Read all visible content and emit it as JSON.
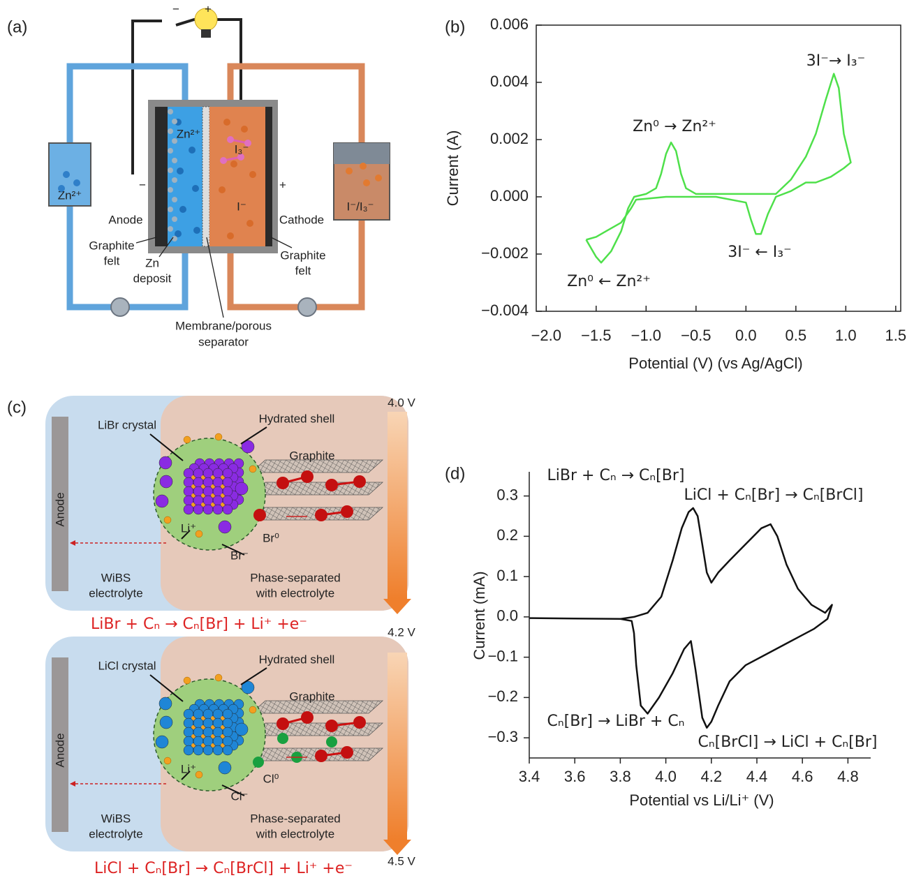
{
  "diagram_a": {
    "panel_label": "(a)",
    "circuit_signs": [
      "−",
      "+"
    ],
    "electrode_signs": [
      "−",
      "+"
    ],
    "anolyte_tank": "Zn²⁺",
    "catholyte_tank": "I⁻/I₃⁻",
    "cell_ions": [
      "Zn²⁺",
      "I₃⁻",
      "I⁻"
    ],
    "anode": "Anode",
    "cathode": "Cathode",
    "graphite_felt_left": [
      "Graphite",
      "felt"
    ],
    "zn_deposit": [
      "Zn",
      "deposit"
    ],
    "graphite_felt_right": [
      "Graphite",
      "felt"
    ],
    "separator": [
      "Membrane/porous",
      "separator"
    ]
  },
  "diagram_c": {
    "panel_label": "(c)",
    "voltages": [
      "4.0 V",
      "4.2 V",
      "4.5 V"
    ],
    "steps": [
      {
        "crystal": "LiBr crystal",
        "shell": "Hydrated shell",
        "graphite": "Graphite",
        "anode": "Anode",
        "cation": "Li⁺",
        "halogen": "Br⁰",
        "anion": "Br⁻",
        "electrolyte": [
          "WiBS",
          "electrolyte"
        ],
        "phase": [
          "Phase-separated",
          "with electrolyte"
        ],
        "equation": "LiBr + Cₙ → Cₙ[Br] + Li⁺ +e⁻"
      },
      {
        "crystal": "LiCl crystal",
        "shell": "Hydrated shell",
        "graphite": "Graphite",
        "anode": "Anode",
        "cation": "Li⁺",
        "halogen": "Cl⁰",
        "anion": "Cl⁻",
        "electrolyte": [
          "WiBS",
          "electrolyte"
        ],
        "phase": [
          "Phase-separated",
          "with electrolyte"
        ],
        "equation": "LiCl + Cₙ[Br] → Cₙ[BrCl] + Li⁺ +e⁻"
      }
    ]
  },
  "chart_data": [
    {
      "type": "line",
      "panel_label": "(b)",
      "x_label": "Potential (V) (vs Ag/AgCl)",
      "y_label": "Current (A)",
      "color": "#4ee04a",
      "x": [
        -1.6,
        -1.5,
        -1.45,
        -1.35,
        -1.25,
        -1.18,
        -1.12,
        -1.0,
        -0.9,
        -0.85,
        -0.8,
        -0.75,
        -0.7,
        -0.65,
        -0.6,
        -0.5,
        0.0,
        0.3,
        0.45,
        0.6,
        0.7,
        0.8,
        0.88,
        0.93,
        0.98,
        1.05,
        0.98,
        0.85,
        0.7,
        0.6,
        0.45,
        0.3,
        0.22,
        0.15,
        0.1,
        0.05,
        0.0,
        -0.3,
        -0.8,
        -1.1,
        -1.15,
        -1.25,
        -1.4,
        -1.5,
        -1.6
      ],
      "values": [
        -0.0015,
        -0.0021,
        -0.0023,
        -0.0019,
        -0.0012,
        -0.0004,
        0.0,
        0.0001,
        0.0003,
        0.0008,
        0.0015,
        0.0019,
        0.0016,
        0.0008,
        0.0003,
        0.0001,
        0.0001,
        0.0001,
        0.0006,
        0.0014,
        0.0022,
        0.0034,
        0.0043,
        0.0038,
        0.0022,
        0.0012,
        0.001,
        0.0007,
        0.0005,
        0.0005,
        0.0002,
        0.0,
        -0.0006,
        -0.0013,
        -0.0013,
        -0.0008,
        -0.0002,
        0.0,
        0.0,
        -0.0001,
        -0.0004,
        -0.0009,
        -0.0012,
        -0.0014,
        -0.0015
      ],
      "xlim": [
        -2.1,
        1.55
      ],
      "xticks": [
        {
          "value": -2,
          "label": "−2.0"
        },
        {
          "value": -1.5,
          "label": "−1.5"
        },
        {
          "value": -1,
          "label": "−1.0"
        },
        {
          "value": -0.5,
          "label": "−0.5"
        },
        {
          "value": 0,
          "label": "0.0"
        },
        0.5,
        {
          "value": 1,
          "label": "1.0"
        },
        1.5
      ],
      "ylim": [
        -0.004,
        0.006
      ],
      "yticks": [
        {
          "value": -0.004,
          "label": "−0.004"
        },
        {
          "value": -0.002,
          "label": "−0.002"
        },
        {
          "value": 0,
          "label": "0.000"
        },
        0.002,
        0.004,
        0.006
      ],
      "annotations": [
        {
          "text": "3I⁻→ I₃⁻",
          "color": "#d9262e"
        },
        {
          "text": "Zn⁰ → Zn²⁺",
          "color": "#d9262e"
        },
        {
          "text": "3I⁻ ← I₃⁻",
          "color": "#d9262e"
        },
        {
          "text": "Zn⁰ ← Zn²⁺",
          "color": "#d9262e"
        }
      ]
    },
    {
      "type": "line",
      "panel_label": "(d)",
      "x_label": "Potential vs Li/Li⁺ (V)",
      "y_label": "Current (mA)",
      "color": "#111111",
      "x": [
        3.4,
        3.6,
        3.8,
        3.86,
        3.92,
        3.98,
        4.03,
        4.07,
        4.1,
        4.12,
        4.14,
        4.16,
        4.18,
        4.2,
        4.23,
        4.28,
        4.35,
        4.42,
        4.46,
        4.49,
        4.53,
        4.58,
        4.64,
        4.7,
        4.73,
        4.71,
        4.65,
        4.55,
        4.45,
        4.35,
        4.28,
        4.23,
        4.2,
        4.18,
        4.16,
        4.13,
        4.11,
        4.08,
        4.03,
        3.97,
        3.92,
        3.89,
        3.87,
        3.86,
        3.85,
        3.8
      ],
      "values": [
        -0.003,
        -0.004,
        -0.005,
        0.0,
        0.01,
        0.05,
        0.14,
        0.22,
        0.26,
        0.27,
        0.25,
        0.18,
        0.11,
        0.085,
        0.11,
        0.14,
        0.18,
        0.22,
        0.23,
        0.2,
        0.13,
        0.07,
        0.03,
        0.01,
        0.03,
        -0.005,
        -0.03,
        -0.06,
        -0.09,
        -0.12,
        -0.16,
        -0.22,
        -0.26,
        -0.275,
        -0.25,
        -0.13,
        -0.06,
        -0.08,
        -0.14,
        -0.2,
        -0.24,
        -0.22,
        -0.12,
        -0.04,
        -0.01,
        -0.005
      ],
      "xlim": [
        3.4,
        4.9
      ],
      "xticks": [
        3.4,
        3.6,
        3.8,
        {
          "value": 4,
          "label": "4.0"
        },
        4.2,
        4.4,
        4.6,
        4.8
      ],
      "ylim": [
        -0.35,
        0.36
      ],
      "yticks": [
        {
          "value": -0.3,
          "label": "−0.3"
        },
        {
          "value": -0.2,
          "label": "−0.2"
        },
        {
          "value": -0.1,
          "label": "−0.1"
        },
        {
          "value": 0,
          "label": "0.0"
        },
        0.1,
        0.2,
        0.3
      ],
      "annotations": [
        {
          "text": "LiBr + Cₙ → Cₙ[Br]",
          "color": "#2a2ab8"
        },
        {
          "text": "LiCl + Cₙ[Br] → Cₙ[BrCl]",
          "color": "#d9262e"
        },
        {
          "text": "Cₙ[Br] → LiBr + Cₙ",
          "color": "#2a2ab8"
        },
        {
          "text": "Cₙ[BrCl] → LiCl + Cₙ[Br]",
          "color": "#d9262e"
        }
      ]
    }
  ]
}
